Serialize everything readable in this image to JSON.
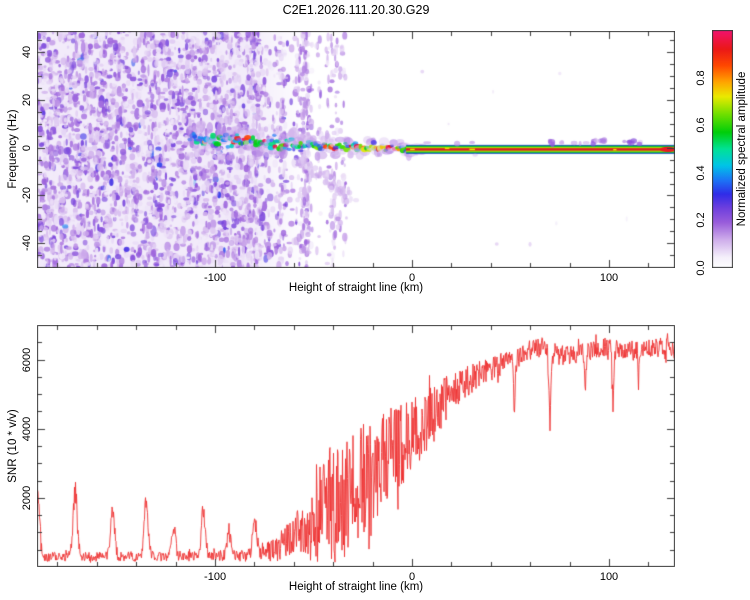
{
  "title": "C2E1.2026.111.20.30.G29",
  "colors": {
    "background": "#ffffff",
    "frame": "#3a3a3a",
    "snr_line": "#ee3333",
    "text": "#000000"
  },
  "chart_data": [
    {
      "type": "heatmap",
      "title": "C2E1.2026.111.20.30.G29",
      "xlabel": "Height of straight line (km)",
      "ylabel": "Frequency (Hz)",
      "xlim": [
        -190.4,
        133.5
      ],
      "ylim": [
        -50.4,
        48.9
      ],
      "xticks": [
        -100,
        0,
        100
      ],
      "xtick_labels": [
        "-100",
        "0",
        "100"
      ],
      "x_minor_step": 20,
      "yticks": [
        -40,
        -20,
        0,
        20,
        40
      ],
      "ytick_labels": [
        "-40",
        "-20",
        "0",
        "20",
        "40"
      ],
      "y_minor_step": 5,
      "grid": false,
      "colorbar": {
        "label": "Normalized spectral amplitude",
        "range": [
          0.0,
          1.0
        ],
        "ticks": [
          0.0,
          0.2,
          0.4,
          0.6,
          0.8
        ],
        "tick_labels": [
          "0.0",
          "0.2",
          "0.4",
          "0.6",
          "0.8"
        ]
      },
      "colormap_stops": [
        [
          0.0,
          "#ffffff"
        ],
        [
          0.045,
          "#f5f0fb"
        ],
        [
          0.12,
          "#ceaceb"
        ],
        [
          0.19,
          "#9a5edb"
        ],
        [
          0.25,
          "#7040de"
        ],
        [
          0.31,
          "#302ce8"
        ],
        [
          0.37,
          "#1c76f6"
        ],
        [
          0.43,
          "#00c4e8"
        ],
        [
          0.5,
          "#00e296"
        ],
        [
          0.57,
          "#00ce0a"
        ],
        [
          0.65,
          "#76e000"
        ],
        [
          0.72,
          "#eaea00"
        ],
        [
          0.78,
          "#ffa600"
        ],
        [
          0.85,
          "#ff4800"
        ],
        [
          0.92,
          "#eb1818"
        ],
        [
          1.0,
          "#f21270"
        ]
      ],
      "features": {
        "noise_region": {
          "x_start_km": -190.4,
          "dense_until_km": -85,
          "fade_until_km": -52,
          "streaks_until_km": -38,
          "amplitude_range": [
            0.04,
            0.3
          ]
        },
        "echo_trace": {
          "blobby_from_km": -113,
          "solid_from_km": -3,
          "center_freq_anchors_km_hz": [
            [
              -113,
              4.5
            ],
            [
              -90,
              3.0
            ],
            [
              -70,
              2.0
            ],
            [
              -50,
              1.0
            ],
            [
              -25,
              0.2
            ],
            [
              0,
              -0.7
            ],
            [
              133.5,
              -0.7
            ]
          ],
          "band_halfwidth_hz": 1.9,
          "core_amplitude": 0.95
        }
      }
    },
    {
      "type": "line",
      "xlabel": "Height of straight line (km)",
      "ylabel": "SNR (10 * v/v)",
      "xlim": [
        -190.4,
        133.5
      ],
      "ylim": [
        0,
        7000
      ],
      "xticks": [
        -100,
        0,
        100
      ],
      "xtick_labels": [
        "-100",
        "0",
        "100"
      ],
      "x_minor_step": 20,
      "yticks": [
        2000,
        4000,
        6000
      ],
      "ytick_labels": [
        "2000",
        "4000",
        "6000"
      ],
      "y_minor_step": 500,
      "grid": false,
      "line_color": "#ee3333",
      "envelope_km_mean_spread": [
        [
          -191,
          300,
          140
        ],
        [
          -170,
          300,
          140
        ],
        [
          -150,
          305,
          140
        ],
        [
          -130,
          310,
          145
        ],
        [
          -110,
          320,
          150
        ],
        [
          -95,
          330,
          160
        ],
        [
          -85,
          350,
          190
        ],
        [
          -75,
          420,
          260
        ],
        [
          -68,
          550,
          380
        ],
        [
          -60,
          900,
          650
        ],
        [
          -52,
          1250,
          1050
        ],
        [
          -45,
          1650,
          1600
        ],
        [
          -38,
          1850,
          1750
        ],
        [
          -30,
          2150,
          1850
        ],
        [
          -22,
          2550,
          1750
        ],
        [
          -15,
          2950,
          1550
        ],
        [
          -8,
          3350,
          1350
        ],
        [
          0,
          3750,
          1150
        ],
        [
          8,
          4250,
          950
        ],
        [
          15,
          4750,
          750
        ],
        [
          22,
          5150,
          550
        ],
        [
          30,
          5450,
          430
        ],
        [
          40,
          5720,
          330
        ],
        [
          50,
          5950,
          300
        ],
        [
          58,
          6230,
          300
        ],
        [
          65,
          6340,
          300
        ],
        [
          70,
          6280,
          330
        ],
        [
          75,
          6120,
          300
        ],
        [
          82,
          6160,
          290
        ],
        [
          90,
          6260,
          280
        ],
        [
          98,
          6360,
          280
        ],
        [
          105,
          6300,
          290
        ],
        [
          112,
          6260,
          290
        ],
        [
          120,
          6310,
          280
        ],
        [
          127,
          6360,
          280
        ],
        [
          134,
          6260,
          280
        ]
      ],
      "spikes_km_peak_width": [
        [
          -190,
          1800,
          1.4
        ],
        [
          -171,
          1950,
          1.5
        ],
        [
          -152,
          1400,
          1.4
        ],
        [
          -135,
          1500,
          1.4
        ],
        [
          -121,
          820,
          1.3
        ],
        [
          -106,
          1280,
          1.4
        ],
        [
          -93,
          700,
          1.3
        ],
        [
          -80,
          1000,
          1.4
        ]
      ],
      "dips_km_floor_width": [
        [
          52,
          4700,
          0.7
        ],
        [
          70,
          4550,
          0.8
        ],
        [
          88,
          5300,
          0.5
        ],
        [
          102,
          4850,
          0.7
        ],
        [
          115,
          5400,
          0.4
        ]
      ]
    }
  ]
}
